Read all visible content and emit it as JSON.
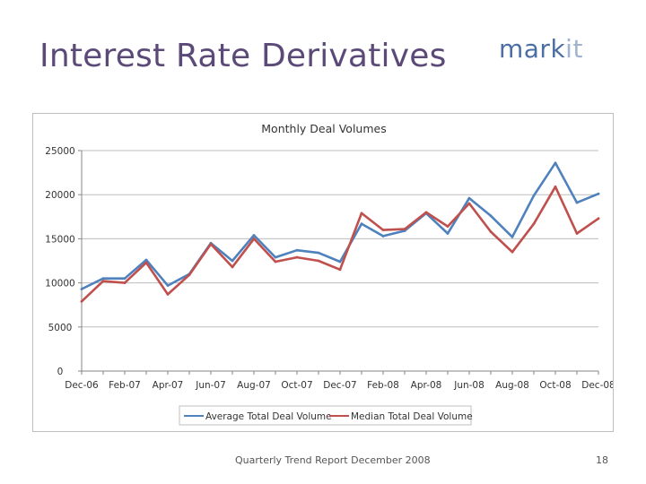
{
  "slide": {
    "title": "Interest Rate Derivatives",
    "logo_left": "mark",
    "logo_right": "it",
    "footer": "Quarterly Trend Report December 2008",
    "page_number": "18"
  },
  "colors": {
    "title": "#5b4a78",
    "series_average": "#4f81bd",
    "series_median": "#c0504d"
  },
  "chart_data": {
    "type": "line",
    "title": "Monthly Deal Volumes",
    "xlabel": "",
    "ylabel": "",
    "ylim": [
      0,
      25000
    ],
    "yticks": [
      0,
      5000,
      10000,
      15000,
      20000,
      25000
    ],
    "grid": true,
    "legend": "bottom",
    "x_tick_labels": [
      "Dec-06",
      "Feb-07",
      "Apr-07",
      "Jun-07",
      "Aug-07",
      "Oct-07",
      "Dec-07",
      "Feb-08",
      "Apr-08",
      "Jun-08",
      "Aug-08",
      "Oct-08",
      "Dec-08"
    ],
    "categories": [
      "Dec-06",
      "Jan-07",
      "Feb-07",
      "Mar-07",
      "Apr-07",
      "May-07",
      "Jun-07",
      "Jul-07",
      "Aug-07",
      "Sep-07",
      "Oct-07",
      "Nov-07",
      "Dec-07",
      "Jan-08",
      "Feb-08",
      "Mar-08",
      "Apr-08",
      "May-08",
      "Jun-08",
      "Jul-08",
      "Aug-08",
      "Sep-08",
      "Oct-08",
      "Nov-08",
      "Dec-08"
    ],
    "series": [
      {
        "name": "Average Total Deal Volume",
        "color": "#4f81bd",
        "values": [
          9300,
          10500,
          10500,
          12600,
          9700,
          11000,
          14500,
          12500,
          15400,
          12900,
          13700,
          13400,
          12400,
          16700,
          15300,
          15900,
          17900,
          15600,
          19600,
          17600,
          15200,
          19900,
          23600,
          19100,
          20100
        ]
      },
      {
        "name": "Median Total Deal Volume",
        "color": "#c0504d",
        "values": [
          7900,
          10200,
          10000,
          12300,
          8700,
          10900,
          14400,
          11800,
          15000,
          12400,
          12900,
          12500,
          11500,
          17900,
          16000,
          16100,
          18000,
          16400,
          19000,
          15800,
          13500,
          16700,
          20900,
          15600,
          17300
        ]
      }
    ]
  }
}
